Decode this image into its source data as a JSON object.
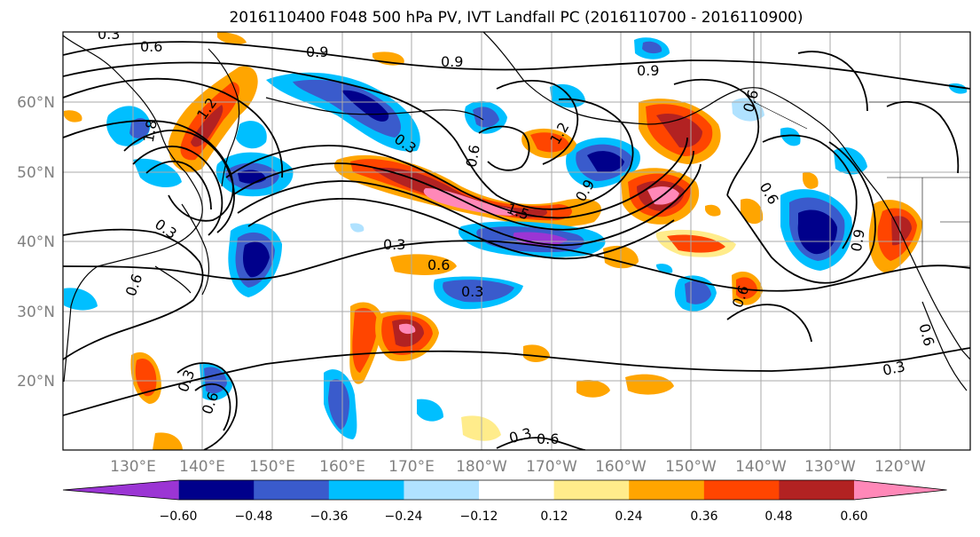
{
  "title": "2016110400 F048 500 hPa PV, IVT Landfall PC (2016110700 - 2016110900)",
  "lat_labels": [
    "60°N",
    "50°N",
    "40°N",
    "30°N",
    "20°N"
  ],
  "lon_labels": [
    "130°E",
    "140°E",
    "150°E",
    "160°E",
    "170°E",
    "180°W",
    "170°W",
    "160°W",
    "150°W",
    "140°W",
    "130°W",
    "120°W"
  ],
  "contour_labels": [
    "0.3",
    "0.6",
    "0.9",
    "0.9",
    "0.9",
    "1.2",
    "1.8",
    "0.3",
    "0.6",
    "1.5",
    "0.9",
    "0.6",
    "1.2",
    "0.3",
    "0.6",
    "0.3",
    "0.6",
    "0.3",
    "0.6",
    "0.9",
    "0.6",
    "0.3",
    "0.6",
    "0.6",
    "0.3",
    "0.3",
    "0.6"
  ],
  "colorbar": {
    "tick_labels": [
      "−0.60",
      "−0.48",
      "−0.36",
      "−0.24",
      "−0.12",
      "0.12",
      "0.24",
      "0.36",
      "0.48",
      "0.60"
    ],
    "colors": [
      "#9b35d4",
      "#00008b",
      "#3a5bcc",
      "#00bfff",
      "#b0e2ff",
      "#ffffff",
      "#ffec8b",
      "#ffa500",
      "#ff4500",
      "#b22222",
      "#ff88b8"
    ]
  }
}
